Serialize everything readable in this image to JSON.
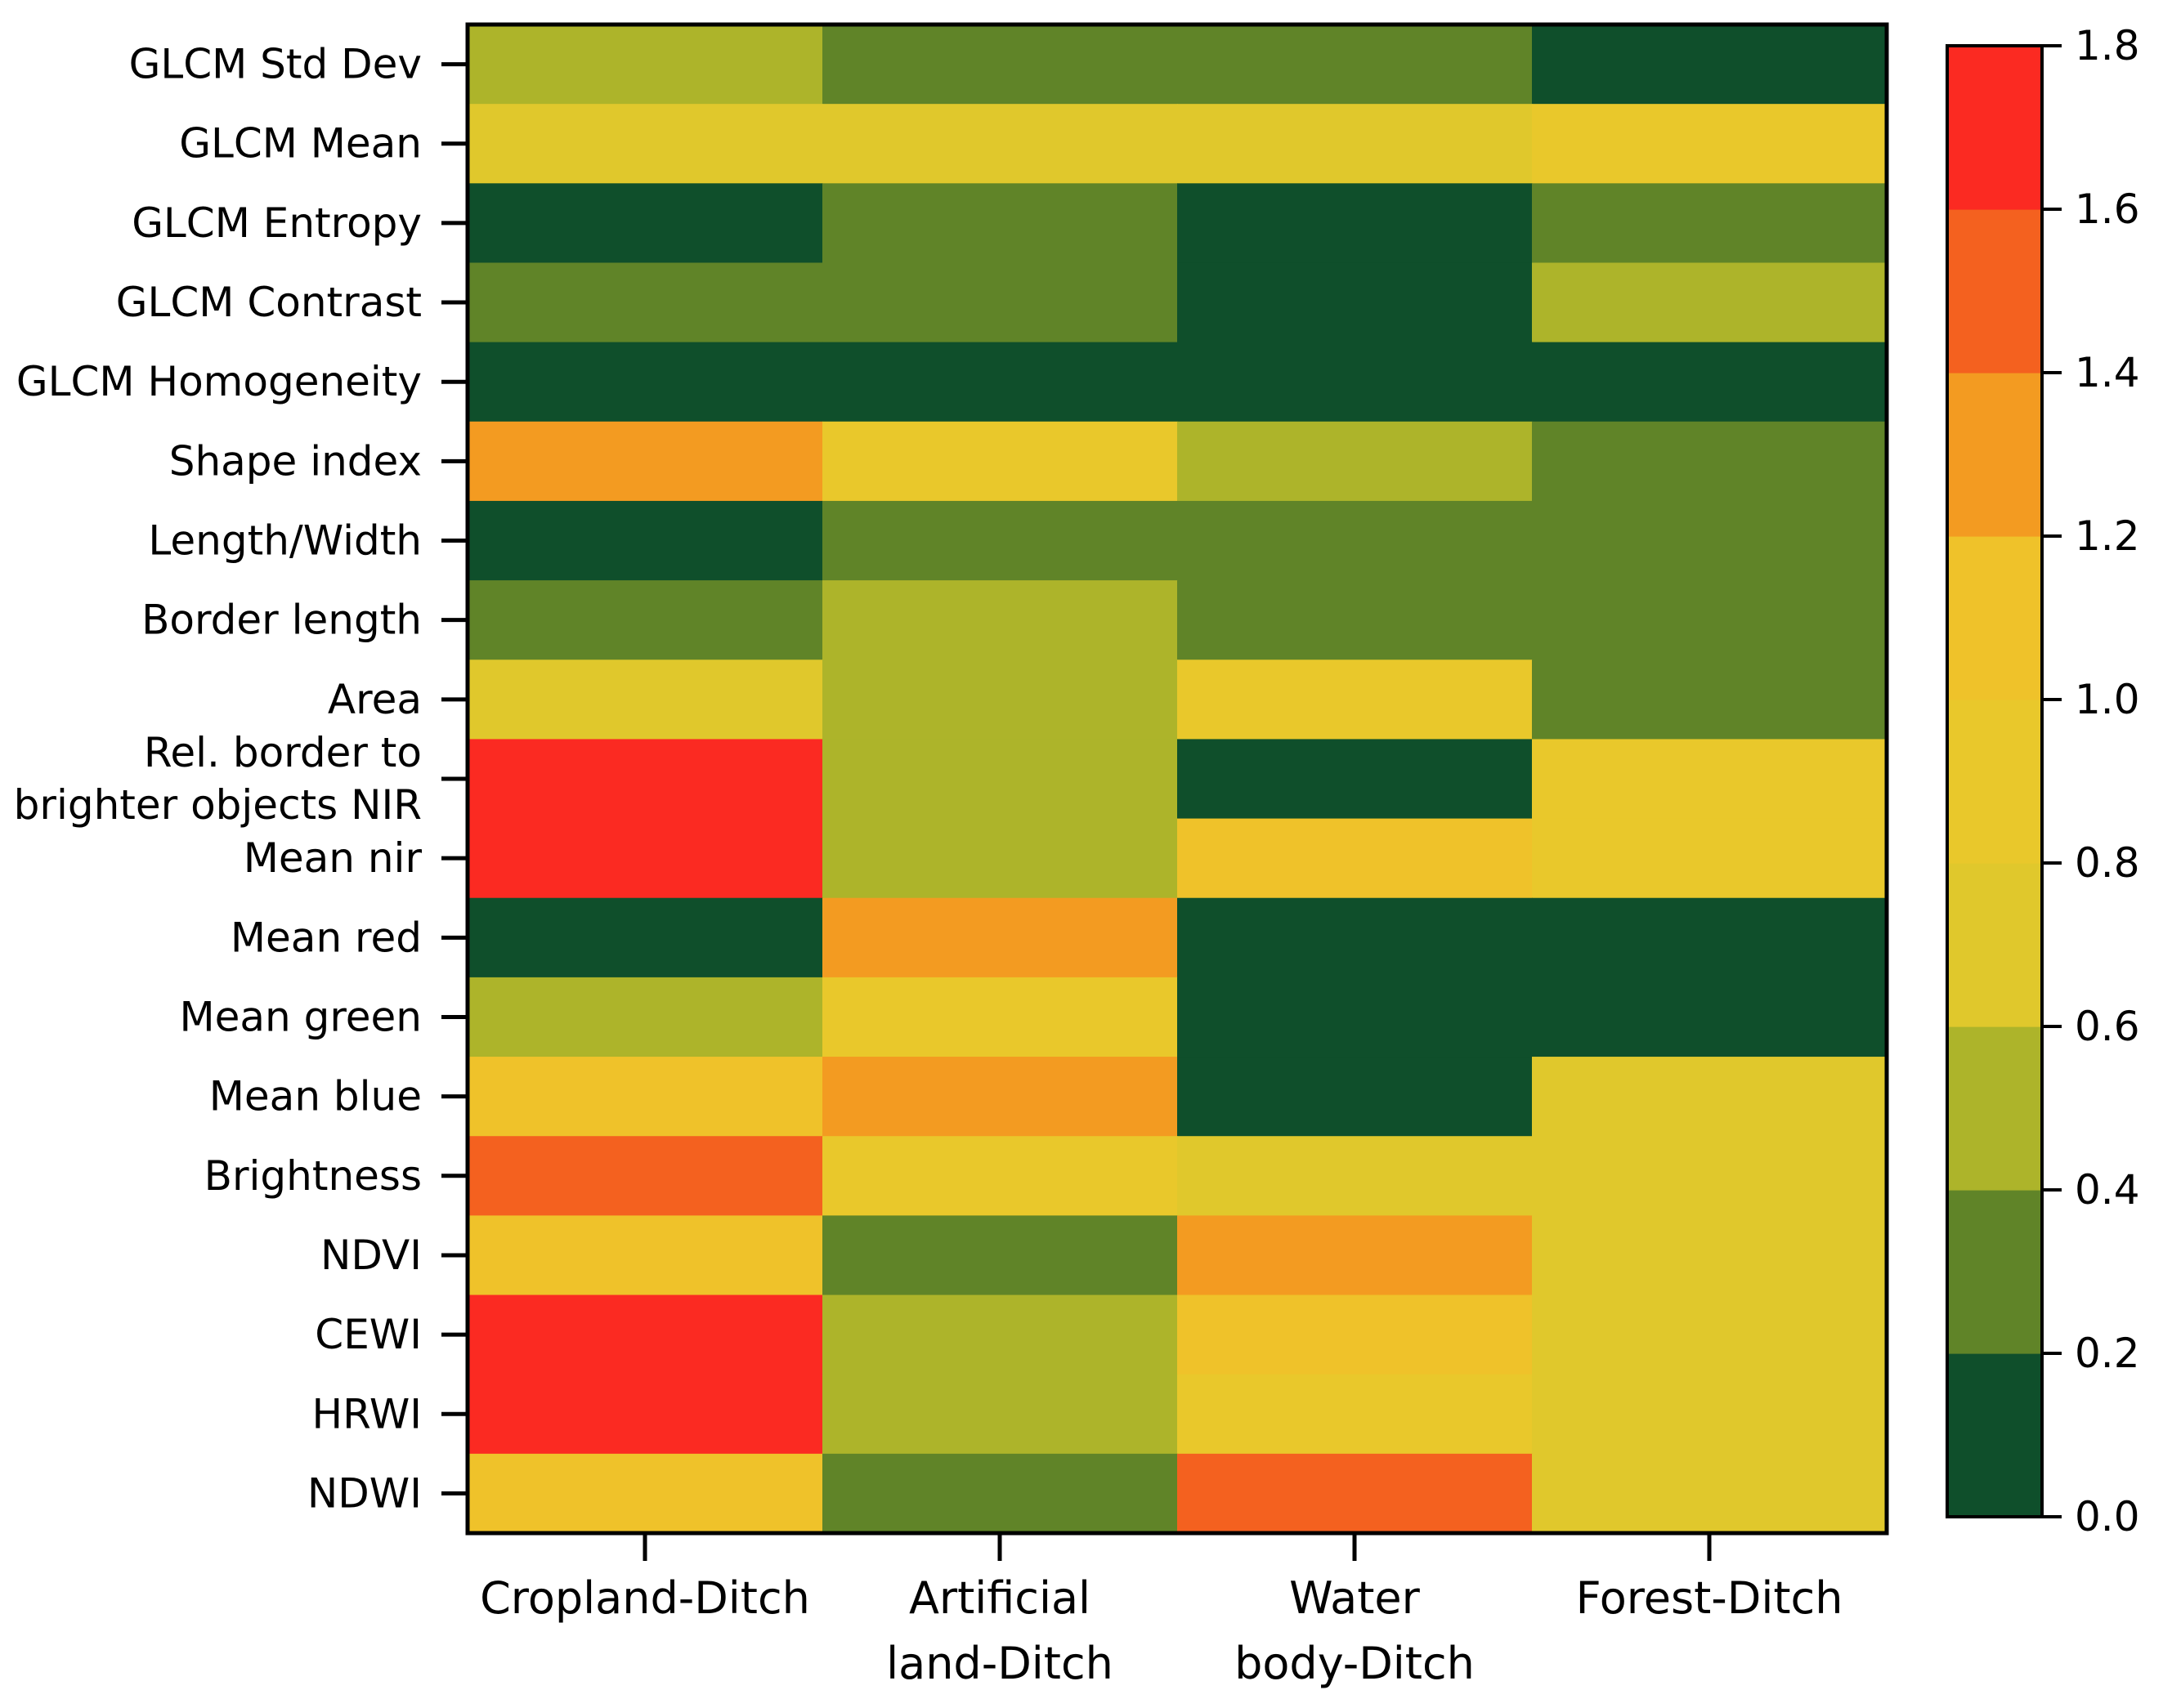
{
  "chart_data": {
    "type": "heatmap",
    "title": "",
    "xlabel": "",
    "ylabel": "",
    "x_categories": [
      [
        "Cropland-Ditch"
      ],
      [
        "Artificial",
        "land-Ditch"
      ],
      [
        "Water",
        "body-Ditch"
      ],
      [
        "Forest-Ditch"
      ]
    ],
    "y_categories": [
      [
        "GLCM Std Dev"
      ],
      [
        "GLCM Mean"
      ],
      [
        "GLCM Entropy"
      ],
      [
        "GLCM Contrast"
      ],
      [
        "GLCM Homogeneity"
      ],
      [
        "Shape index"
      ],
      [
        "Length/Width"
      ],
      [
        "Border length"
      ],
      [
        "Area"
      ],
      [
        "Rel. border to",
        "brighter objects NIR"
      ],
      [
        "Mean nir"
      ],
      [
        "Mean red"
      ],
      [
        "Mean green"
      ],
      [
        "Mean blue"
      ],
      [
        "Brightness"
      ],
      [
        "NDVI"
      ],
      [
        "CEWI"
      ],
      [
        "HRWI"
      ],
      [
        "NDWI"
      ]
    ],
    "values": [
      [
        0.5,
        0.3,
        0.3,
        0.1
      ],
      [
        0.7,
        0.7,
        0.7,
        0.9
      ],
      [
        0.1,
        0.3,
        0.1,
        0.3
      ],
      [
        0.3,
        0.3,
        0.1,
        0.5
      ],
      [
        0.1,
        0.1,
        0.1,
        0.1
      ],
      [
        1.3,
        0.9,
        0.5,
        0.3
      ],
      [
        0.1,
        0.3,
        0.3,
        0.3
      ],
      [
        0.3,
        0.5,
        0.3,
        0.3
      ],
      [
        0.7,
        0.5,
        0.9,
        0.3
      ],
      [
        1.7,
        0.5,
        0.1,
        0.9
      ],
      [
        1.7,
        0.5,
        1.1,
        0.9
      ],
      [
        0.1,
        1.3,
        0.1,
        0.1
      ],
      [
        0.5,
        0.9,
        0.1,
        0.1
      ],
      [
        1.1,
        1.3,
        0.1,
        0.7
      ],
      [
        1.5,
        0.9,
        0.7,
        0.7
      ],
      [
        1.1,
        0.3,
        1.3,
        0.7
      ],
      [
        1.7,
        0.5,
        1.1,
        0.7
      ],
      [
        1.7,
        0.5,
        0.9,
        0.7
      ],
      [
        1.1,
        0.3,
        1.5,
        0.7
      ]
    ],
    "colorbar": {
      "min": 0.0,
      "max": 1.8,
      "step": 0.2,
      "colors": [
        "#0f4f2b",
        "#608428",
        "#adb42a",
        "#e0c82c",
        "#e9c82b",
        "#efc22a",
        "#f39b21",
        "#f4611f",
        "#fb2a22"
      ],
      "ticks": [
        "0.0",
        "0.2",
        "0.4",
        "0.6",
        "0.8",
        "1.0",
        "1.2",
        "1.4",
        "1.6",
        "1.8"
      ]
    },
    "grid": false,
    "legend": "colorbar-right"
  }
}
